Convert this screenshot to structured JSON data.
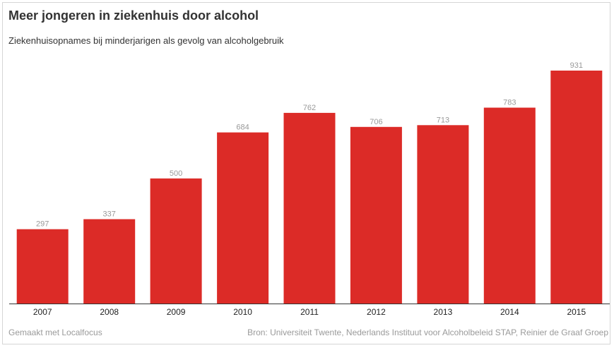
{
  "title": "Meer jongeren in ziekenhuis door alcohol",
  "subtitle": "Ziekenhuisopnames bij minderjarigen als gevolg van alcoholgebruik",
  "footer": {
    "left": "Gemaakt met Localfocus",
    "right": "Bron: Universiteit Twente, Nederlands Instituut voor Alcoholbeleid STAP, Reinier de Graaf Groep"
  },
  "colors": {
    "bar": "#dc2b27",
    "axis": "#333333"
  },
  "chart_data": {
    "type": "bar",
    "categories": [
      "2007",
      "2008",
      "2009",
      "2010",
      "2011",
      "2012",
      "2013",
      "2014",
      "2015"
    ],
    "values": [
      297,
      337,
      500,
      684,
      762,
      706,
      713,
      783,
      931
    ],
    "title": "Meer jongeren in ziekenhuis door alcohol",
    "subtitle": "Ziekenhuisopnames bij minderjarigen als gevolg van alcoholgebruik",
    "ylim": [
      0,
      931
    ],
    "grid": false,
    "legend": "none"
  }
}
